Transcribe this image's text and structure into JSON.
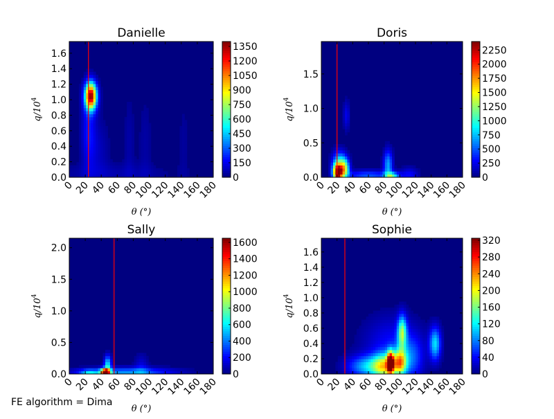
{
  "figure": {
    "footnote": "FE algorithm = Dima"
  },
  "chart_data": [
    {
      "type": "heatmap",
      "title": "Danielle",
      "xlabel": "θ (°)",
      "ylabel": "q/10",
      "ylabel_sup": "4",
      "xlim": [
        0,
        180
      ],
      "ylim": [
        0,
        1.75
      ],
      "xticks": [
        "0",
        "20",
        "40",
        "60",
        "80",
        "100",
        "120",
        "140",
        "160",
        "180"
      ],
      "yticks": [
        "0.0",
        "0.2",
        "0.4",
        "0.6",
        "0.8",
        "1.0",
        "1.2",
        "1.4",
        "1.6"
      ],
      "ytick_values": [
        0,
        0.2,
        0.4,
        0.6,
        0.8,
        1.0,
        1.2,
        1.4,
        1.6
      ],
      "vmin": 0,
      "vmax": 1400,
      "colorbar_ticks": [
        "0",
        "150",
        "300",
        "450",
        "600",
        "750",
        "900",
        "1050",
        "1200",
        "1350"
      ],
      "colorbar_values": [
        0,
        150,
        300,
        450,
        600,
        750,
        900,
        1050,
        1200,
        1350
      ],
      "vline_x": 24,
      "vline_color": "#ff0000",
      "blobs": [
        {
          "x": 27,
          "y": 1.05,
          "sx": 5,
          "sy": 0.12,
          "peak": 1350
        },
        {
          "x": 24,
          "y": 0.6,
          "sx": 6,
          "sy": 0.35,
          "peak": 180
        },
        {
          "x": 36,
          "y": 0.35,
          "sx": 10,
          "sy": 0.3,
          "peak": 80
        },
        {
          "x": 75,
          "y": 0.45,
          "sx": 5,
          "sy": 0.45,
          "peak": 55
        },
        {
          "x": 95,
          "y": 0.45,
          "sx": 6,
          "sy": 0.45,
          "peak": 50
        },
        {
          "x": 143,
          "y": 0.45,
          "sx": 5,
          "sy": 0.45,
          "peak": 40
        },
        {
          "x": 50,
          "y": 0.05,
          "sx": 60,
          "sy": 0.1,
          "peak": 60
        }
      ]
    },
    {
      "type": "heatmap",
      "title": "Doris",
      "xlabel": "θ (°)",
      "ylabel": "q/10",
      "ylabel_sup": "4",
      "xlim": [
        0,
        180
      ],
      "ylim": [
        0,
        1.97
      ],
      "xticks": [
        "0",
        "20",
        "40",
        "60",
        "80",
        "100",
        "120",
        "140",
        "160",
        "180"
      ],
      "yticks": [
        "0.0",
        "0.5",
        "1.0",
        "1.5"
      ],
      "ytick_values": [
        0,
        0.5,
        1.0,
        1.5
      ],
      "vmin": 0,
      "vmax": 2400,
      "colorbar_ticks": [
        "0",
        "250",
        "500",
        "750",
        "1000",
        "1250",
        "1500",
        "1750",
        "2000",
        "2250"
      ],
      "colorbar_values": [
        0,
        250,
        500,
        750,
        1000,
        1250,
        1500,
        1750,
        2000,
        2250
      ],
      "vline_x": 20,
      "vline_color": "#ff0000",
      "blobs": [
        {
          "x": 21,
          "y": 0.07,
          "sx": 4,
          "sy": 0.08,
          "peak": 2350
        },
        {
          "x": 30,
          "y": 0.12,
          "sx": 4,
          "sy": 0.1,
          "peak": 1100
        },
        {
          "x": 23,
          "y": 0.2,
          "sx": 6,
          "sy": 0.12,
          "peak": 900
        },
        {
          "x": 85,
          "y": 0.18,
          "sx": 4,
          "sy": 0.15,
          "peak": 700
        },
        {
          "x": 90,
          "y": 0.02,
          "sx": 6,
          "sy": 0.04,
          "peak": 900
        },
        {
          "x": 32,
          "y": 0.9,
          "sx": 3,
          "sy": 0.15,
          "peak": 250
        },
        {
          "x": 60,
          "y": 0.03,
          "sx": 20,
          "sy": 0.05,
          "peak": 500
        },
        {
          "x": 112,
          "y": 0.03,
          "sx": 8,
          "sy": 0.08,
          "peak": 300
        }
      ]
    },
    {
      "type": "heatmap",
      "title": "Sally",
      "xlabel": "θ (°)",
      "ylabel": "q/10",
      "ylabel_sup": "4",
      "xlim": [
        0,
        180
      ],
      "ylim": [
        0,
        2.15
      ],
      "xticks": [
        "0",
        "20",
        "40",
        "60",
        "80",
        "100",
        "120",
        "140",
        "160",
        "180"
      ],
      "yticks": [
        "0.0",
        "0.5",
        "1.0",
        "1.5",
        "2.0"
      ],
      "ytick_values": [
        0,
        0.5,
        1.0,
        1.5,
        2.0
      ],
      "vmin": 0,
      "vmax": 1650,
      "colorbar_ticks": [
        "0",
        "200",
        "400",
        "600",
        "800",
        "1000",
        "1200",
        "1400",
        "1600"
      ],
      "colorbar_values": [
        0,
        200,
        400,
        600,
        800,
        1000,
        1200,
        1400,
        1600
      ],
      "vline_x": 56,
      "vline_color": "#ff0000",
      "blobs": [
        {
          "x": 48,
          "y": 0.15,
          "sx": 3,
          "sy": 0.1,
          "peak": 600
        },
        {
          "x": 45,
          "y": 0.03,
          "sx": 4,
          "sy": 0.04,
          "peak": 1600
        },
        {
          "x": 70,
          "y": 0.03,
          "sx": 40,
          "sy": 0.05,
          "peak": 450
        },
        {
          "x": 90,
          "y": 0.1,
          "sx": 6,
          "sy": 0.15,
          "peak": 150
        },
        {
          "x": 25,
          "y": 0.03,
          "sx": 8,
          "sy": 0.03,
          "peak": 400
        }
      ]
    },
    {
      "type": "heatmap",
      "title": "Sophie",
      "xlabel": "θ (°)",
      "ylabel": "q/10",
      "ylabel_sup": "4",
      "xlim": [
        0,
        180
      ],
      "ylim": [
        0,
        1.78
      ],
      "xticks": [
        "0",
        "20",
        "40",
        "60",
        "80",
        "100",
        "120",
        "140",
        "160",
        "180"
      ],
      "yticks": [
        "0.0",
        "0.2",
        "0.4",
        "0.6",
        "0.8",
        "1.0",
        "1.2",
        "1.4",
        "1.6"
      ],
      "ytick_values": [
        0,
        0.2,
        0.4,
        0.6,
        0.8,
        1.0,
        1.2,
        1.4,
        1.6
      ],
      "vmin": 0,
      "vmax": 325,
      "colorbar_ticks": [
        "0",
        "40",
        "80",
        "120",
        "160",
        "200",
        "240",
        "280",
        "320"
      ],
      "colorbar_values": [
        0,
        40,
        80,
        120,
        160,
        200,
        240,
        280,
        320
      ],
      "vline_x": 30,
      "vline_color": "#ff0000",
      "blobs": [
        {
          "x": 88,
          "y": 0.15,
          "sx": 3,
          "sy": 0.1,
          "peak": 300
        },
        {
          "x": 103,
          "y": 0.55,
          "sx": 4,
          "sy": 0.15,
          "peak": 150
        },
        {
          "x": 100,
          "y": 0.15,
          "sx": 6,
          "sy": 0.12,
          "peak": 200
        },
        {
          "x": 80,
          "y": 0.1,
          "sx": 10,
          "sy": 0.12,
          "peak": 150
        },
        {
          "x": 60,
          "y": 0.1,
          "sx": 18,
          "sy": 0.1,
          "peak": 100
        },
        {
          "x": 145,
          "y": 0.4,
          "sx": 5,
          "sy": 0.15,
          "peak": 110
        },
        {
          "x": 115,
          "y": 0.2,
          "sx": 10,
          "sy": 0.2,
          "peak": 60
        },
        {
          "x": 90,
          "y": 0.4,
          "sx": 25,
          "sy": 0.25,
          "peak": 40
        }
      ]
    }
  ]
}
